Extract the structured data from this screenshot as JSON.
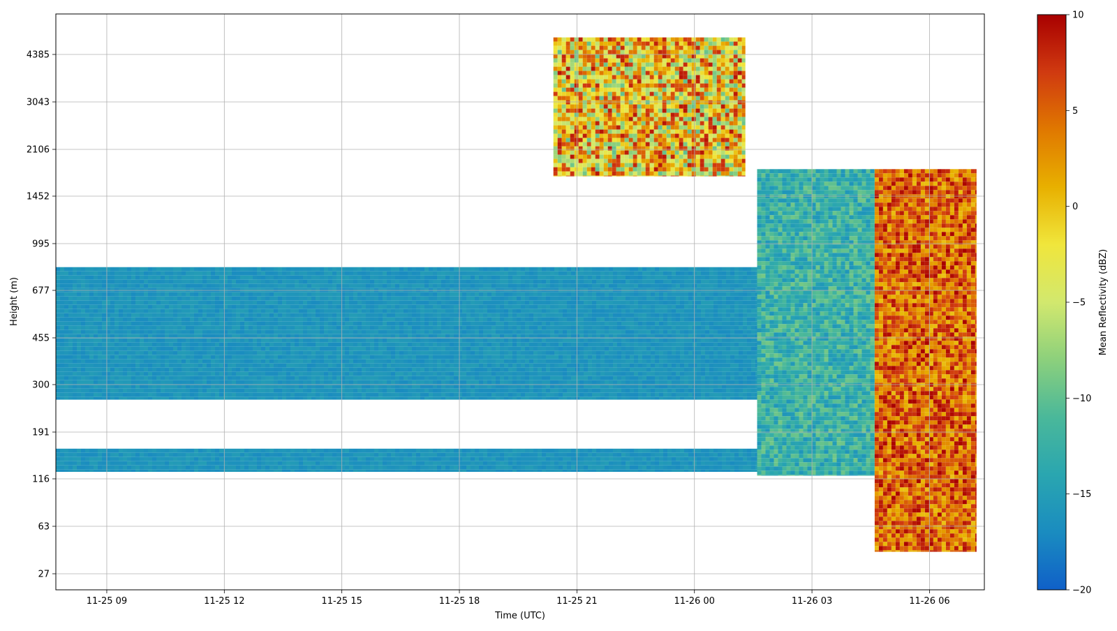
{
  "chart_data": {
    "type": "heatmap",
    "title": "",
    "xlabel": "Time (UTC)",
    "ylabel": "Height (m)",
    "x_ticks": [
      {
        "t": 9,
        "label": "11-25 09"
      },
      {
        "t": 12,
        "label": "11-25 12"
      },
      {
        "t": 15,
        "label": "11-25 15"
      },
      {
        "t": 18,
        "label": "11-25 18"
      },
      {
        "t": 21,
        "label": "11-25 21"
      },
      {
        "t": 24,
        "label": "11-26 00"
      },
      {
        "t": 27,
        "label": "11-26 03"
      },
      {
        "t": 30,
        "label": "11-26 06"
      }
    ],
    "x_range_hours": [
      7.7,
      31.4
    ],
    "y_ticks": [
      "27",
      "63",
      "116",
      "191",
      "300",
      "455",
      "677",
      "995",
      "1452",
      "2106",
      "3043",
      "4385"
    ],
    "grid": true,
    "colorbar": {
      "label": "Mean Reflectivity (dBZ)",
      "range": [
        -20,
        10
      ],
      "ticks": [
        "10",
        "5",
        "0",
        "−5",
        "−10",
        "−15",
        "−20"
      ],
      "colors": [
        "#1060c8",
        "#1a8cc0",
        "#2aa6b0",
        "#4ab89a",
        "#8cd07c",
        "#d2e86e",
        "#f0e63c",
        "#e8b000",
        "#e07800",
        "#d03a10",
        "#a80000"
      ]
    },
    "regions": [
      {
        "name": "boundary-layer-echo",
        "time_hours": [
          7.7,
          25.6
        ],
        "height_m": [
          260,
          820
        ],
        "dbz_range": [
          -17,
          -15
        ]
      },
      {
        "name": "low-level-band",
        "time_hours": [
          7.7,
          25.6
        ],
        "height_m": [
          125,
          160
        ],
        "dbz_range": [
          -17,
          -15
        ]
      },
      {
        "name": "upper-cloud",
        "time_hours": [
          20.4,
          25.3
        ],
        "height_m": [
          1700,
          5000
        ],
        "dbz_range": [
          -10,
          9
        ]
      },
      {
        "name": "transition-layer",
        "time_hours": [
          25.6,
          28.6
        ],
        "height_m": [
          120,
          1800
        ],
        "dbz_range": [
          -16,
          -9
        ]
      },
      {
        "name": "precipitation",
        "time_hours": [
          28.6,
          31.2
        ],
        "height_m": [
          40,
          1800
        ],
        "dbz_range": [
          0,
          10
        ]
      }
    ]
  }
}
